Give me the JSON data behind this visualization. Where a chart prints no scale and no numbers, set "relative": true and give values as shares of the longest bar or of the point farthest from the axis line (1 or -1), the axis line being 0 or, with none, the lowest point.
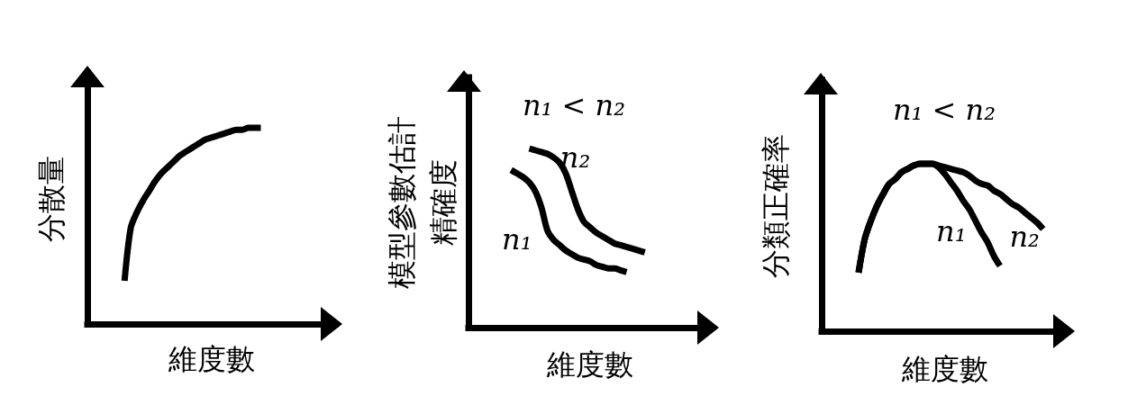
{
  "chart_data": [
    {
      "type": "line",
      "relative": true,
      "xlabel": "維度數",
      "ylabel": "分散量",
      "grid": false,
      "marker": "none",
      "line_style": "solid",
      "color": "#000000",
      "categories": [
        null,
        null,
        null,
        null,
        null,
        null,
        null,
        null,
        null,
        null,
        null,
        null,
        null,
        null,
        null,
        null,
        null,
        null,
        null,
        null,
        null,
        null,
        null,
        null,
        null,
        null,
        null,
        null,
        null,
        null,
        null,
        null,
        null,
        null,
        null,
        null,
        null,
        null,
        null,
        null,
        null
      ],
      "values": [
        null,
        null,
        null,
        null,
        null,
        null,
        0.22,
        0.49,
        0.57,
        0.63,
        0.68,
        0.73,
        0.77,
        0.8,
        0.83,
        0.86,
        0.88,
        0.9,
        0.92,
        0.94,
        0.95,
        0.96,
        0.97,
        0.98,
        0.99,
        0.99,
        1.0,
        1.0,
        1.0,
        null,
        null,
        null,
        null,
        null,
        null,
        null,
        null,
        null,
        null,
        null,
        null
      ]
    },
    {
      "type": "line",
      "relative": true,
      "xlabel": "維度數",
      "ylabel": "模型參數估計精確度",
      "grid": false,
      "marker": "none",
      "line_style": "solid",
      "annotations": [
        "n₁ < n₂"
      ],
      "categories": [
        null,
        null,
        null,
        null,
        null,
        null,
        null,
        null,
        null,
        null,
        null,
        null,
        null,
        null,
        null,
        null,
        null,
        null,
        null,
        null,
        null,
        null,
        null,
        null,
        null,
        null,
        null,
        null,
        null,
        null,
        null,
        null,
        null,
        null,
        null,
        null,
        null,
        null,
        null,
        null,
        null
      ],
      "series": [
        {
          "name": "n₁",
          "color": "#000000",
          "values": [
            null,
            null,
            null,
            null,
            null,
            null,
            null,
            0.88,
            0.86,
            0.84,
            0.81,
            0.76,
            0.67,
            0.54,
            0.49,
            0.46,
            0.43,
            0.41,
            0.39,
            0.38,
            0.37,
            0.35,
            0.34,
            0.33,
            0.33,
            0.32,
            0.31,
            null,
            null,
            null,
            null,
            null,
            null,
            null,
            null,
            null,
            null,
            null,
            null,
            null,
            null
          ]
        },
        {
          "name": "n₂",
          "color": "#000000",
          "values": [
            null,
            null,
            null,
            null,
            null,
            null,
            null,
            null,
            null,
            null,
            1.0,
            0.99,
            0.98,
            0.97,
            0.95,
            0.92,
            0.86,
            0.76,
            0.66,
            0.59,
            0.56,
            0.53,
            0.51,
            0.49,
            0.47,
            0.46,
            0.45,
            0.44,
            0.43,
            0.42,
            null,
            null,
            null,
            null,
            null,
            null,
            null,
            null,
            null,
            null,
            null
          ]
        }
      ]
    },
    {
      "type": "line",
      "relative": true,
      "xlabel": "維度數",
      "ylabel": "分類正確率",
      "grid": false,
      "marker": "none",
      "line_style": "solid",
      "annotations": [
        "n₁ < n₂"
      ],
      "categories": [
        null,
        null,
        null,
        null,
        null,
        null,
        null,
        null,
        null,
        null,
        null,
        null,
        null,
        null,
        null,
        null,
        null,
        null,
        null,
        null,
        null,
        null,
        null,
        null,
        null,
        null,
        null,
        null,
        null,
        null,
        null,
        null,
        null,
        null,
        null,
        null,
        null,
        null,
        null,
        null,
        null
      ],
      "series": [
        {
          "name": "n₁",
          "color": "#000000",
          "values": [
            null,
            null,
            null,
            null,
            null,
            null,
            0.35,
            0.55,
            0.66,
            0.75,
            0.82,
            0.88,
            0.91,
            0.95,
            0.97,
            0.99,
            1.0,
            1.0,
            1.0,
            0.98,
            0.94,
            0.89,
            0.84,
            0.78,
            0.73,
            0.66,
            0.59,
            0.53,
            0.45,
            0.39,
            null,
            null,
            null,
            null,
            null,
            null,
            null,
            null,
            null,
            null,
            null
          ]
        },
        {
          "name": "n₂",
          "color": "#000000",
          "values": [
            null,
            null,
            null,
            null,
            null,
            null,
            0.35,
            0.55,
            0.66,
            0.75,
            0.82,
            0.88,
            0.91,
            0.95,
            0.97,
            0.99,
            1.0,
            1.0,
            1.0,
            0.99,
            0.98,
            0.97,
            0.96,
            0.95,
            0.93,
            0.9,
            0.88,
            0.87,
            0.84,
            0.82,
            0.79,
            0.76,
            0.74,
            0.71,
            0.68,
            0.65,
            0.61,
            null,
            null,
            null,
            null
          ]
        }
      ]
    }
  ]
}
